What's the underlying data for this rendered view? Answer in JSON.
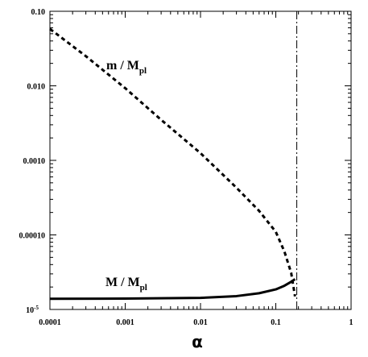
{
  "chart_data": {
    "type": "line",
    "xscale": "log",
    "yscale": "log",
    "xlim": [
      0.0001,
      1
    ],
    "ylim": [
      1e-05,
      0.1
    ],
    "xlabel": "α",
    "ylabel": "",
    "title": "",
    "grid": false,
    "x_ticks": [
      {
        "value": 0.0001,
        "label": "0.0001"
      },
      {
        "value": 0.001,
        "label": "0.001"
      },
      {
        "value": 0.01,
        "label": "0.01"
      },
      {
        "value": 0.1,
        "label": "0.1"
      },
      {
        "value": 1,
        "label": "1"
      }
    ],
    "y_ticks": [
      {
        "value": 0.1,
        "label": "0.10"
      },
      {
        "value": 0.01,
        "label": "0.010"
      },
      {
        "value": 0.001,
        "label": "0.0010"
      },
      {
        "value": 0.0001,
        "label": "0.00010"
      },
      {
        "value": 1e-05,
        "label": "10",
        "sup": "-5"
      }
    ],
    "series": [
      {
        "name": "m / M_pl",
        "label_main": "m / M",
        "label_sub": "pl",
        "style": "dashed",
        "x": [
          0.0001,
          0.0003,
          0.001,
          0.003,
          0.01,
          0.03,
          0.06,
          0.1,
          0.13,
          0.16,
          0.18
        ],
        "y": [
          0.058,
          0.025,
          0.0093,
          0.0035,
          0.00125,
          0.00043,
          0.00021,
          0.00011,
          6e-05,
          3.1e-05,
          1.5e-05
        ]
      },
      {
        "name": "M / M_pl",
        "label_main": "M / M",
        "label_sub": "pl",
        "style": "solid",
        "x": [
          0.0001,
          0.001,
          0.01,
          0.03,
          0.06,
          0.1,
          0.13,
          0.16,
          0.18
        ],
        "y": [
          1.39e-05,
          1.4e-05,
          1.43e-05,
          1.51e-05,
          1.65e-05,
          1.86e-05,
          2.08e-05,
          2.35e-05,
          2.55e-05
        ]
      }
    ],
    "vertical_line": {
      "x": 0.19,
      "style": "dash-dot"
    }
  }
}
